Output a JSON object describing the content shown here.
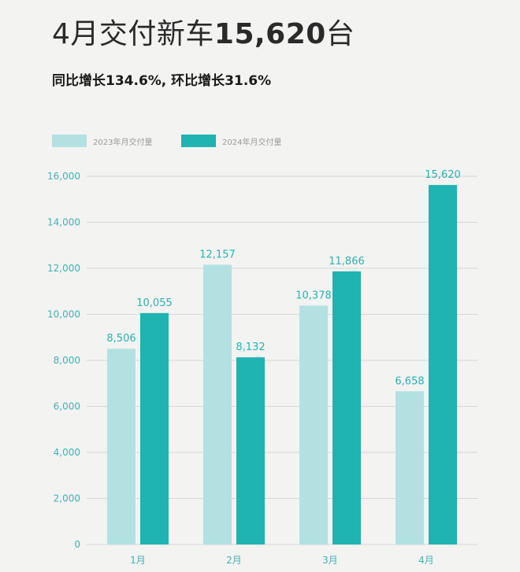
{
  "header": {
    "title_prefix": "4月交付新车",
    "title_number": "15,620",
    "title_suffix": "台",
    "subtitle": "同比增长134.6%, 环比增长31.6%"
  },
  "colors": {
    "series_2023": "#b3e1e2",
    "series_2024": "#1fb3b1",
    "label_text": "#2ab1b0",
    "grid": "#d6d6d6",
    "axis_text": "#3bb3b2",
    "background": "#f3f3f2"
  },
  "chart_data": {
    "type": "bar",
    "categories": [
      "1月",
      "2月",
      "3月",
      "4月"
    ],
    "series": [
      {
        "name": "2023年月交付量",
        "values": [
          8506,
          12157,
          10378,
          6658
        ],
        "labels": [
          "8,506",
          "12,157",
          "10,378",
          "6,658"
        ]
      },
      {
        "name": "2024年月交付量",
        "values": [
          10055,
          8132,
          11866,
          15620
        ],
        "labels": [
          "10,055",
          "8,132",
          "11,866",
          "15,620"
        ]
      }
    ],
    "yticks": [
      "0",
      "2,000",
      "4,000",
      "6,000",
      "8,000",
      "10,000",
      "12,000",
      "14,000",
      "16,000"
    ],
    "ylim": [
      0,
      16000
    ],
    "grid": true,
    "legend": "top-left"
  }
}
